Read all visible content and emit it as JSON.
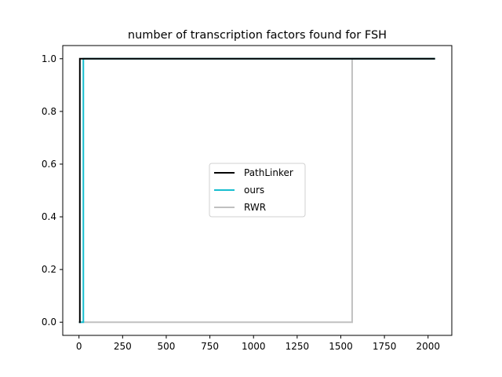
{
  "chart_data": {
    "type": "line",
    "title": "number of transcription factors found for FSH",
    "xlabel": "",
    "ylabel": "",
    "xlim": [
      -93,
      2136
    ],
    "ylim": [
      -0.05,
      1.05
    ],
    "x_ticks": [
      0,
      250,
      500,
      750,
      1000,
      1250,
      1500,
      1750,
      2000
    ],
    "y_ticks": [
      0.0,
      0.2,
      0.4,
      0.6,
      0.8,
      1.0
    ],
    "x_tick_labels": [
      "0",
      "250",
      "500",
      "750",
      "1000",
      "1250",
      "1500",
      "1750",
      "2000"
    ],
    "y_tick_labels": [
      "0.0",
      "0.2",
      "0.4",
      "0.6",
      "0.8",
      "1.0"
    ],
    "legend_position": "center",
    "grid": false,
    "series": [
      {
        "name": "PathLinker",
        "color": "#000000",
        "x": [
          0,
          5,
          5,
          2040
        ],
        "y": [
          0,
          0,
          1,
          1
        ]
      },
      {
        "name": "ours",
        "color": "#17becf",
        "x": [
          0,
          25,
          25,
          2040
        ],
        "y": [
          0,
          0,
          1,
          1
        ]
      },
      {
        "name": "RWR",
        "color": "#c0c0c0",
        "x": [
          0,
          1565,
          1565,
          2040
        ],
        "y": [
          0,
          0,
          1,
          1
        ]
      }
    ]
  }
}
